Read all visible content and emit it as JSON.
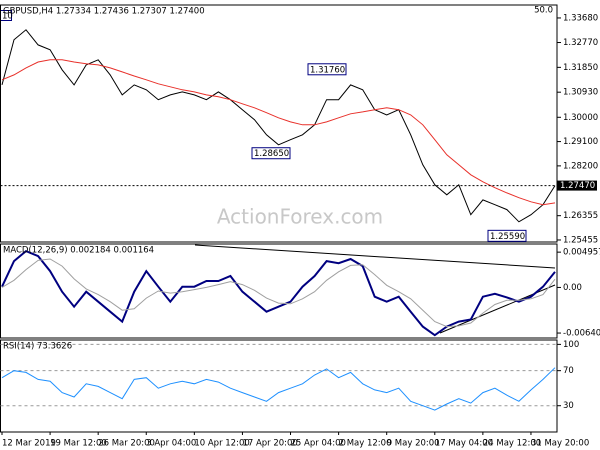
{
  "header": {
    "scale": "50.0",
    "zoom": "10",
    "watermark": "ActionForex.com"
  },
  "chart_data": [
    {
      "type": "line",
      "title": "GBPUSD,H4  1.27334 1.27436 1.27307 1.27400",
      "series": [
        {
          "name": "Close",
          "color": "#000000",
          "values": [
            1.312,
            1.3287,
            1.3324,
            1.3268,
            1.325,
            1.3176,
            1.312,
            1.3194,
            1.3213,
            1.3157,
            1.3083,
            1.312,
            1.3102,
            1.3065,
            1.3083,
            1.3094,
            1.3083,
            1.3065,
            1.3094,
            1.3065,
            1.3028,
            1.2991,
            1.2935,
            1.2898,
            1.2917,
            1.2935,
            1.2972,
            1.3065,
            1.3065,
            1.312,
            1.3102,
            1.3028,
            1.3009,
            1.3028,
            1.2935,
            1.2824,
            1.275,
            1.2713,
            1.275,
            1.2639,
            1.2694,
            1.2676,
            1.2658,
            1.2613,
            1.2639,
            1.2676,
            1.2747
          ]
        },
        {
          "name": "MA",
          "color": "#e8302a",
          "values": [
            1.3139,
            1.3157,
            1.3183,
            1.3205,
            1.3213,
            1.3213,
            1.3205,
            1.3198,
            1.3194,
            1.3183,
            1.3168,
            1.3153,
            1.3139,
            1.3124,
            1.3113,
            1.3102,
            1.3094,
            1.3083,
            1.3076,
            1.3065,
            1.305,
            1.3035,
            1.3017,
            1.2998,
            1.2983,
            1.2972,
            1.2972,
            1.2983,
            1.2998,
            1.3013,
            1.302,
            1.3028,
            1.3035,
            1.3028,
            1.3009,
            1.2972,
            1.2917,
            1.2861,
            1.2824,
            1.2787,
            1.2761,
            1.2739,
            1.272,
            1.2702,
            1.2687,
            1.2676,
            1.2683
          ]
        }
      ],
      "ylim": [
        1.2538,
        1.3416
      ],
      "yticks": [
        {
          "value": 1.3368,
          "label": "1.33680"
        },
        {
          "value": 1.3277,
          "label": "1.32770"
        },
        {
          "value": 1.3185,
          "label": "1.31850"
        },
        {
          "value": 1.3093,
          "label": "1.30930"
        },
        {
          "value": 1.3,
          "label": "1.30000"
        },
        {
          "value": 1.291,
          "label": "1.29100"
        },
        {
          "value": 1.282,
          "label": "1.28200"
        },
        {
          "value": 1.26355,
          "label": "1.26355"
        },
        {
          "value": 1.25455,
          "label": "1.25455"
        }
      ],
      "current_price": {
        "value": 1.2747,
        "label": "1.27470"
      },
      "annotations": [
        {
          "value": 1.3176,
          "label": "1.31760"
        },
        {
          "value": 1.2865,
          "label": "1.28650"
        },
        {
          "value": 1.2559,
          "label": "1.25590"
        }
      ],
      "grid": false
    },
    {
      "type": "line",
      "title": "MACD(12,26,9) 0.002184 0.001164",
      "series": [
        {
          "name": "MACD",
          "color": "#000080",
          "values": [
            0.0001,
            0.0037,
            0.0051,
            0.0044,
            0.0023,
            -0.0006,
            -0.0027,
            -0.0006,
            -0.002,
            -0.0034,
            -0.0048,
            -0.0006,
            0.0023,
            0.0001,
            -0.002,
            0.0001,
            0.0001,
            0.0009,
            0.0009,
            0.0016,
            -0.0006,
            -0.002,
            -0.0034,
            -0.0027,
            -0.002,
            0.0001,
            0.0016,
            0.0037,
            0.0034,
            0.004,
            0.003,
            -0.0013,
            -0.002,
            -0.0013,
            -0.0034,
            -0.0055,
            -0.0067,
            -0.0055,
            -0.0048,
            -0.0045,
            -0.0013,
            -0.0009,
            -0.0014,
            -0.002,
            -0.0013,
            0.0001,
            0.002184
          ]
        },
        {
          "name": "Signal",
          "color": "#a0a0a0",
          "values": [
            0.0,
            0.001,
            0.0025,
            0.0038,
            0.004,
            0.003,
            0.0012,
            -0.0002,
            -0.001,
            -0.002,
            -0.0032,
            -0.003,
            -0.0015,
            -0.0005,
            -0.0008,
            -0.0006,
            -0.0003,
            0.0,
            0.0004,
            0.0008,
            0.0004,
            -0.0004,
            -0.0015,
            -0.0022,
            -0.0023,
            -0.0016,
            -0.0006,
            0.001,
            0.0022,
            0.0031,
            0.0032,
            0.0018,
            0.0003,
            -0.0006,
            -0.0016,
            -0.0032,
            -0.0048,
            -0.0055,
            -0.0054,
            -0.005,
            -0.0036,
            -0.0024,
            -0.0018,
            -0.0018,
            -0.0016,
            -0.001,
            0.001164
          ]
        }
      ],
      "ylim": [
        -0.0071,
        0.0061
      ],
      "yticks": [
        0.004957,
        {
          "value": 0,
          "label": "0.00"
        },
        -0.006404
      ],
      "grid": false
    },
    {
      "type": "line",
      "title": "RSI(14) 73.3626",
      "categories": [
        "12 Mar 2019",
        null,
        null,
        null,
        "19 Mar 12:00",
        null,
        null,
        null,
        "26 Mar 20:00",
        null,
        null,
        null,
        "3 Apr 04:00",
        null,
        null,
        null,
        "10 Apr 12:00",
        null,
        null,
        null,
        "17 Apr 20:00",
        null,
        null,
        null,
        "25 Apr 04:00",
        null,
        null,
        null,
        "2 May 12:00",
        null,
        null,
        null,
        "9 May 20:00",
        null,
        null,
        null,
        "17 May 04:00",
        null,
        null,
        null,
        "24 May 12:00",
        null,
        null,
        null,
        "31 May 20:00",
        null,
        null
      ],
      "series": [
        {
          "name": "RSI",
          "color": "#1e90ff",
          "values": [
            62,
            70,
            68,
            60,
            58,
            45,
            40,
            55,
            52,
            45,
            38,
            60,
            62,
            50,
            55,
            58,
            55,
            60,
            57,
            50,
            45,
            40,
            35,
            45,
            50,
            55,
            65,
            72,
            62,
            68,
            55,
            48,
            45,
            50,
            35,
            30,
            25,
            32,
            38,
            33,
            45,
            50,
            42,
            35,
            48,
            60,
            73.3626
          ]
        }
      ],
      "ylim": [
        0,
        105
      ],
      "yticks": [
        100,
        70,
        30
      ],
      "grid": true
    }
  ]
}
